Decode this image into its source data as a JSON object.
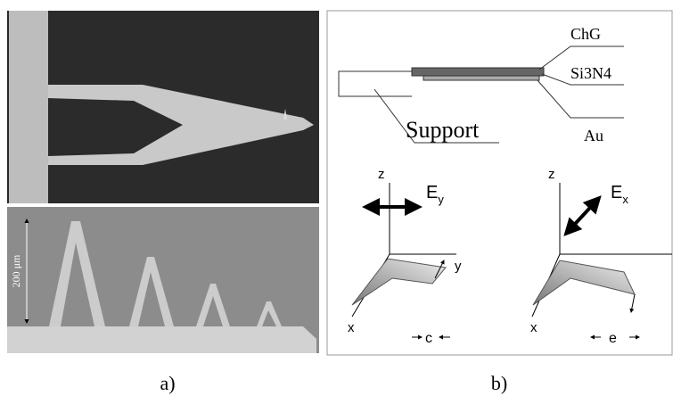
{
  "panel_a": {
    "scale_label": "200 μm",
    "caption": "a)"
  },
  "panel_b": {
    "layers": {
      "top": "ChG",
      "middle": "Si3N4",
      "bottom": "Au",
      "support": "Support"
    },
    "left_axes": {
      "z": "z",
      "y": "y",
      "x": "x",
      "field": {
        "symbol": "E",
        "subscript": "y"
      },
      "mode": "c"
    },
    "right_axes": {
      "z": "z",
      "x": "x",
      "field": {
        "symbol": "E",
        "subscript": "x"
      },
      "mode": "e"
    },
    "caption": "b)"
  }
}
